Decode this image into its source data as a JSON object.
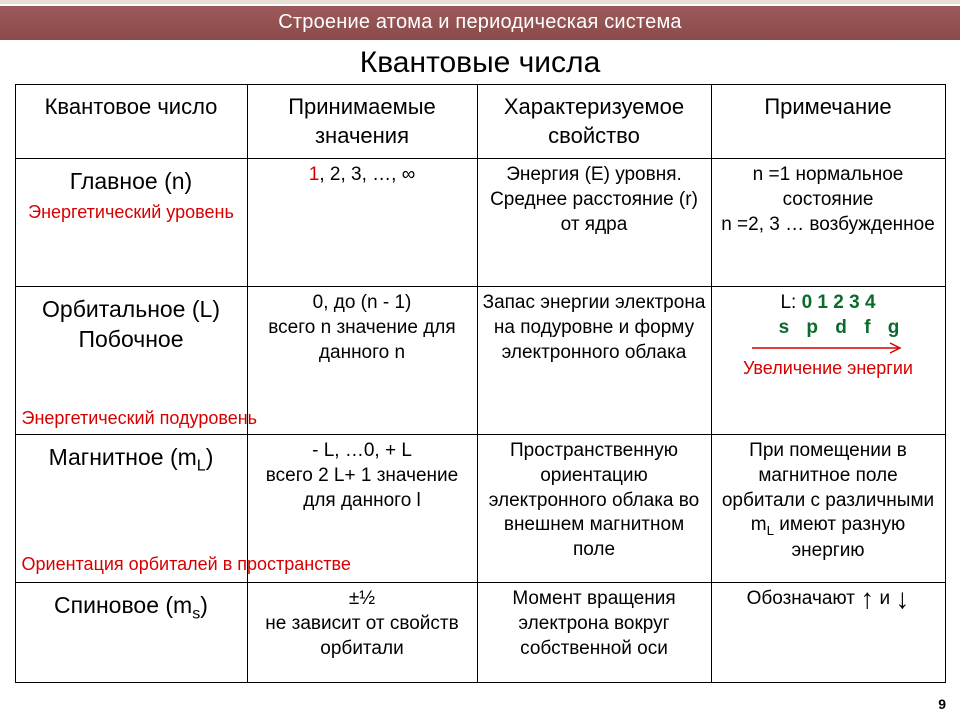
{
  "header": "Строение атома и периодическая система",
  "title": "Квантовые числа",
  "page_number": "9",
  "colors": {
    "accent_red": "#d60000",
    "accent_green": "#0a6b2c",
    "header_bg": "#8f4e4e"
  },
  "columns": [
    "Квантовое число",
    "Принимаемые значения",
    "Характеризуемое свойство",
    "Примечание"
  ],
  "rows": [
    {
      "name": "Главное (n)",
      "subtitle": "Энергетический уровень",
      "values_prefix_red": "1",
      "values_rest": ", 2, 3, …, ∞",
      "property": "Энергия (Е) уровня. Среднее расстояние (r) от ядра",
      "note": "n =1 нормальное состояние\nn =2, 3 … возбужденное"
    },
    {
      "name": "Орбитальное (L) Побочное",
      "subtitle": "Энергетический подуровень",
      "values": "0,  до (n - 1)\nвсего n значение для данного n",
      "property": "Запас энергии электрона на подуровне и форму электронного облака",
      "note_L_numbers": "0 1 2 3 4",
      "note_L_letters": "s p d f g",
      "note_arrow_label": "Увеличение энергии"
    },
    {
      "name_html": "Магнитное (m<span class=sub>L</span>)",
      "subtitle": "Ориентация орбиталей в пространстве",
      "values": "- L, …0, + L\nвсего 2 L+ 1 значение\nдля данного l",
      "property": "Пространственную ориентацию электронного облака во внешнем магнитном поле",
      "note_html": "При помещении в магнитное поле орбитали с различными m<span class=sub>L</span> имеют разную энергию"
    },
    {
      "name_html": "Спиновое (m<span class=sub>s</span>)",
      "values": "±½\nне зависит от свойств орбитали",
      "property": "Момент вращения электрона вокруг собственной оси",
      "note_prefix": "Обозначают",
      "note_between": "и"
    }
  ]
}
